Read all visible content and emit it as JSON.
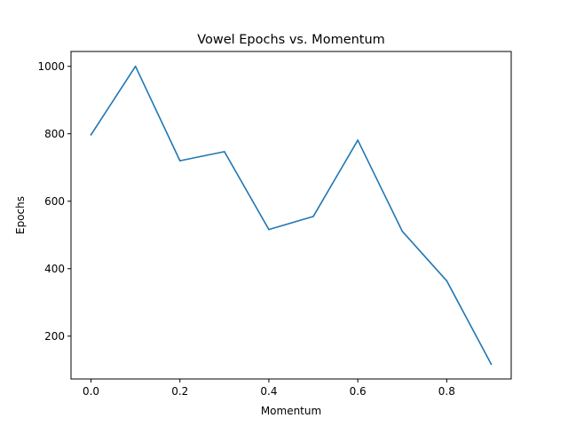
{
  "chart_data": {
    "type": "line",
    "title": "Vowel Epochs vs. Momentum",
    "xlabel": "Momentum",
    "ylabel": "Epochs",
    "x": [
      0.0,
      0.1,
      0.2,
      0.3,
      0.4,
      0.5,
      0.6,
      0.7,
      0.8,
      0.9
    ],
    "series": [
      {
        "values": [
          797,
          1000,
          720,
          747,
          516,
          555,
          781,
          511,
          364,
          117
        ],
        "color": "#1f77b4"
      }
    ],
    "xlim": [
      -0.045,
      0.945
    ],
    "ylim": [
      73,
      1044
    ],
    "xticks": [
      0.0,
      0.2,
      0.4,
      0.6,
      0.8
    ],
    "xtick_labels": [
      "0.0",
      "0.2",
      "0.4",
      "0.6",
      "0.8"
    ],
    "yticks": [
      200,
      400,
      600,
      800,
      1000
    ],
    "ytick_labels": [
      "200",
      "400",
      "600",
      "800",
      "1000"
    ],
    "grid": false,
    "legend": "none"
  }
}
